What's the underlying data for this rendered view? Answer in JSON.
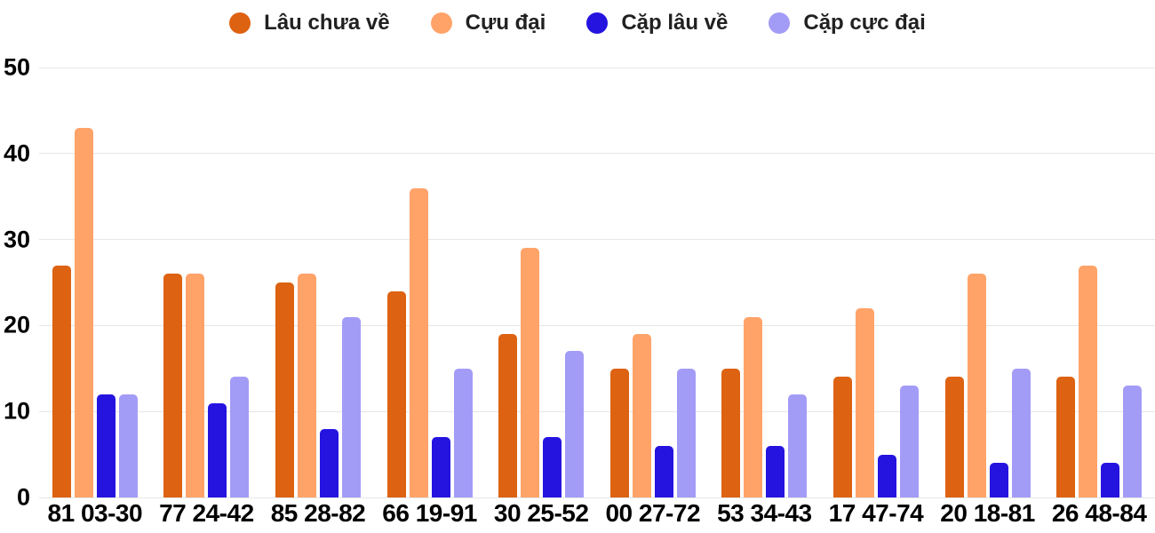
{
  "chart_data": {
    "type": "bar",
    "title": "",
    "xlabel": "",
    "ylabel": "",
    "categories": [
      "81 03-30",
      "77 24-42",
      "85 28-82",
      "66 19-91",
      "30 25-52",
      "00 27-72",
      "53 34-43",
      "17 47-74",
      "20 18-81",
      "26 48-84"
    ],
    "series": [
      {
        "name": "Lâu chưa về",
        "color": "#dd6211",
        "values": [
          27,
          26,
          25,
          24,
          19,
          15,
          15,
          14,
          14,
          14
        ]
      },
      {
        "name": "Cựu đại",
        "color": "#ffa369",
        "values": [
          43,
          26,
          26,
          36,
          29,
          19,
          21,
          22,
          26,
          27
        ]
      },
      {
        "name": "Cặp lâu về",
        "color": "#2513e0",
        "values": [
          12,
          11,
          8,
          7,
          7,
          6,
          6,
          5,
          4,
          4
        ]
      },
      {
        "name": "Cặp cực đại",
        "color": "#a39cf6",
        "values": [
          12,
          14,
          21,
          15,
          17,
          15,
          12,
          13,
          15,
          13
        ]
      }
    ],
    "ylim": [
      0,
      50
    ],
    "yticks": [
      0,
      10,
      20,
      30,
      40,
      50
    ],
    "grid": true,
    "legend_position": "top",
    "colors": {
      "background": "#ffffff",
      "gridline": "#e6e6e6",
      "axis_text": "#000000",
      "legend_text": "#212121"
    }
  }
}
